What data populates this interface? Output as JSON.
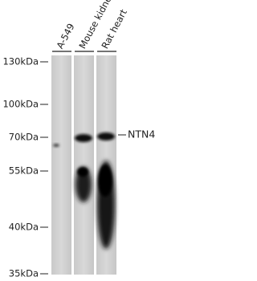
{
  "lanes": [
    "A-549",
    "Mouse kidney",
    "Rat heart"
  ],
  "markers": [
    "130kDa",
    "100kDa",
    "70kDa",
    "55kDa",
    "40kDa",
    "35kDa"
  ],
  "band_label": "NTN4"
}
